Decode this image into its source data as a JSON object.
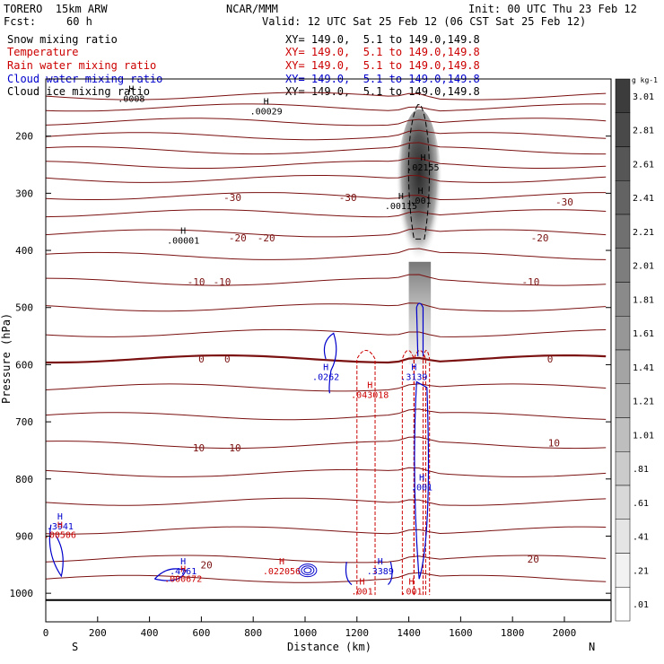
{
  "header": {
    "model": "TORERO  15km ARW",
    "org": "NCAR/MMM",
    "init": "Init: 00 UTC Thu 23 Feb 12",
    "fcst_label": "Fcst:",
    "fcst_value": "60 h",
    "valid": "Valid: 12 UTC Sat 25 Feb 12 (06 CST Sat 25 Feb 12)"
  },
  "fields": [
    {
      "name": "Snow mixing ratio",
      "coords": "XY= 149.0,  5.1 to 149.0,149.8",
      "color": "#000000"
    },
    {
      "name": "Temperature",
      "coords": "XY= 149.0,  5.1 to 149.0,149.8",
      "color": "#cc0000"
    },
    {
      "name": "Rain water mixing ratio",
      "coords": "XY= 149.0,  5.1 to 149.0,149.8",
      "color": "#cc0000"
    },
    {
      "name": "Cloud water mixing ratio",
      "coords": "XY= 149.0,  5.1 to 149.0,149.8",
      "color": "#0000cc"
    },
    {
      "name": "Cloud ice mixing ratio",
      "coords": "XY= 149.0,  5.1 to 149.0,149.8",
      "color": "#000000"
    }
  ],
  "chart_data": {
    "type": "heatmap",
    "xlabel": "Distance (km)",
    "ylabel": "Pressure (hPa)",
    "xlim": [
      0,
      2180
    ],
    "ylim": [
      1050,
      100
    ],
    "x_ticks": [
      "0",
      "200",
      "400",
      "600",
      "800",
      "1000",
      "1200",
      "1400",
      "1600",
      "1800",
      "2000"
    ],
    "y_ticks": [
      "200",
      "300",
      "400",
      "500",
      "600",
      "700",
      "800",
      "900",
      "1000"
    ],
    "x_end_labels": {
      "left": "S",
      "right": "N"
    },
    "colorbar": {
      "unit": "g kg-1",
      "levels": [
        "3.01",
        "2.81",
        "2.61",
        "2.41",
        "2.21",
        "2.01",
        "1.81",
        "1.61",
        "1.41",
        "1.21",
        "1.01",
        ".81",
        ".61",
        ".41",
        ".21",
        ".01"
      ]
    },
    "temperature_contour_labels": [
      {
        "x": 1165,
        "p": 307,
        "text": "-30"
      },
      {
        "x": 720,
        "p": 307,
        "text": "-30"
      },
      {
        "x": 2000,
        "p": 315,
        "text": "-30"
      },
      {
        "x": 740,
        "p": 378,
        "text": "-20"
      },
      {
        "x": 850,
        "p": 378,
        "text": "-20"
      },
      {
        "x": 1905,
        "p": 378,
        "text": "-20"
      },
      {
        "x": 580,
        "p": 455,
        "text": "-10"
      },
      {
        "x": 680,
        "p": 455,
        "text": "-10"
      },
      {
        "x": 1870,
        "p": 455,
        "text": "-10"
      },
      {
        "x": 600,
        "p": 590,
        "text": "0"
      },
      {
        "x": 700,
        "p": 590,
        "text": "0"
      },
      {
        "x": 1945,
        "p": 590,
        "text": "0"
      },
      {
        "x": 590,
        "p": 745,
        "text": "10"
      },
      {
        "x": 730,
        "p": 745,
        "text": "10"
      },
      {
        "x": 1960,
        "p": 737,
        "text": "10"
      },
      {
        "x": 620,
        "p": 950,
        "text": "20"
      },
      {
        "x": 1880,
        "p": 940,
        "text": "20"
      }
    ],
    "maxima_labels": [
      {
        "x": 330,
        "p": 140,
        "text": ".0008",
        "color": "#000000"
      },
      {
        "x": 850,
        "p": 162,
        "text": ".00029",
        "color": "#000000"
      },
      {
        "x": 1455,
        "p": 260,
        "text": ".02155",
        "color": "#000000"
      },
      {
        "x": 1370,
        "p": 328,
        "text": ".00115",
        "color": "#000000"
      },
      {
        "x": 1445,
        "p": 318,
        "text": ".001",
        "color": "#000000"
      },
      {
        "x": 530,
        "p": 388,
        "text": ".00001",
        "color": "#000000"
      },
      {
        "x": 1080,
        "p": 627,
        "text": ".0262",
        "color": "#0000cc"
      },
      {
        "x": 1420,
        "p": 627,
        "text": ".3139",
        "color": "#0000cc"
      },
      {
        "x": 1450,
        "p": 820,
        "text": ".001",
        "color": "#0000cc"
      },
      {
        "x": 1250,
        "p": 658,
        "text": ".043018",
        "color": "#cc0000"
      },
      {
        "x": 55,
        "p": 888,
        "text": ".3941",
        "color": "#0000cc"
      },
      {
        "x": 55,
        "p": 903,
        "text": ".00506",
        "color": "#cc0000"
      },
      {
        "x": 530,
        "p": 967,
        "text": ".4761",
        "color": "#0000cc"
      },
      {
        "x": 530,
        "p": 980,
        "text": ".000672",
        "color": "#cc0000"
      },
      {
        "x": 910,
        "p": 967,
        "text": ".022056",
        "color": "#cc0000"
      },
      {
        "x": 1290,
        "p": 967,
        "text": ".3389",
        "color": "#0000cc"
      },
      {
        "x": 1220,
        "p": 1002,
        "text": ".001",
        "color": "#cc0000"
      },
      {
        "x": 1410,
        "p": 1002,
        "text": ".001",
        "color": "#cc0000"
      }
    ]
  }
}
